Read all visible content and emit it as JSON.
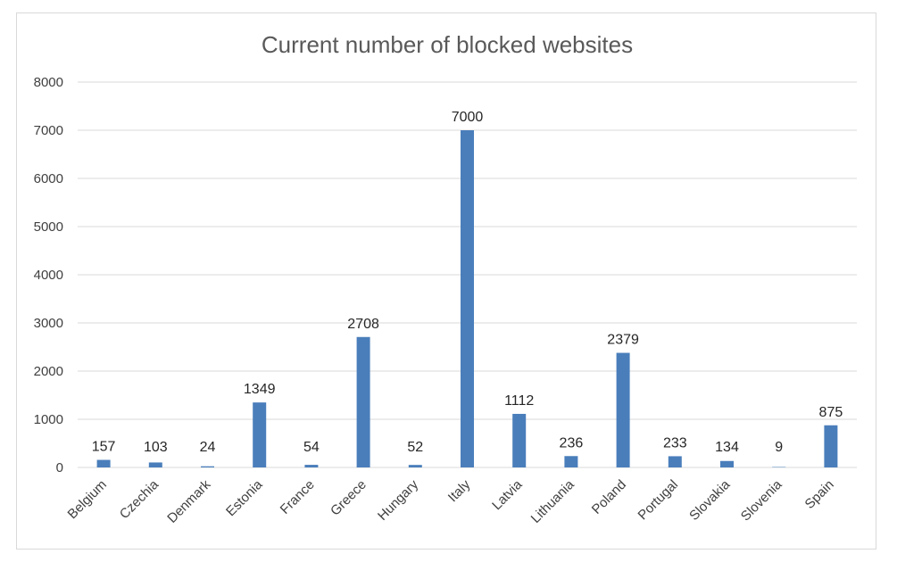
{
  "chart_data": {
    "type": "bar",
    "title": "Current number of blocked websites",
    "xlabel": "",
    "ylabel": "",
    "categories": [
      "Belgium",
      "Czechia",
      "Denmark",
      "Estonia",
      "France",
      "Greece",
      "Hungary",
      "Italy",
      "Latvia",
      "Lithuania",
      "Poland",
      "Portugal",
      "Slovakia",
      "Slovenia",
      "Spain"
    ],
    "values": [
      157,
      103,
      24,
      1349,
      54,
      2708,
      52,
      7000,
      1112,
      236,
      2379,
      233,
      134,
      9,
      875
    ],
    "ylim": [
      0,
      8000
    ],
    "yticks": [
      0,
      1000,
      2000,
      3000,
      4000,
      5000,
      6000,
      7000,
      8000
    ],
    "grid": true,
    "legend": "none",
    "data_labels": true,
    "colors": {
      "bar": "#4a7ebb",
      "grid": "#d9d9d9"
    }
  }
}
